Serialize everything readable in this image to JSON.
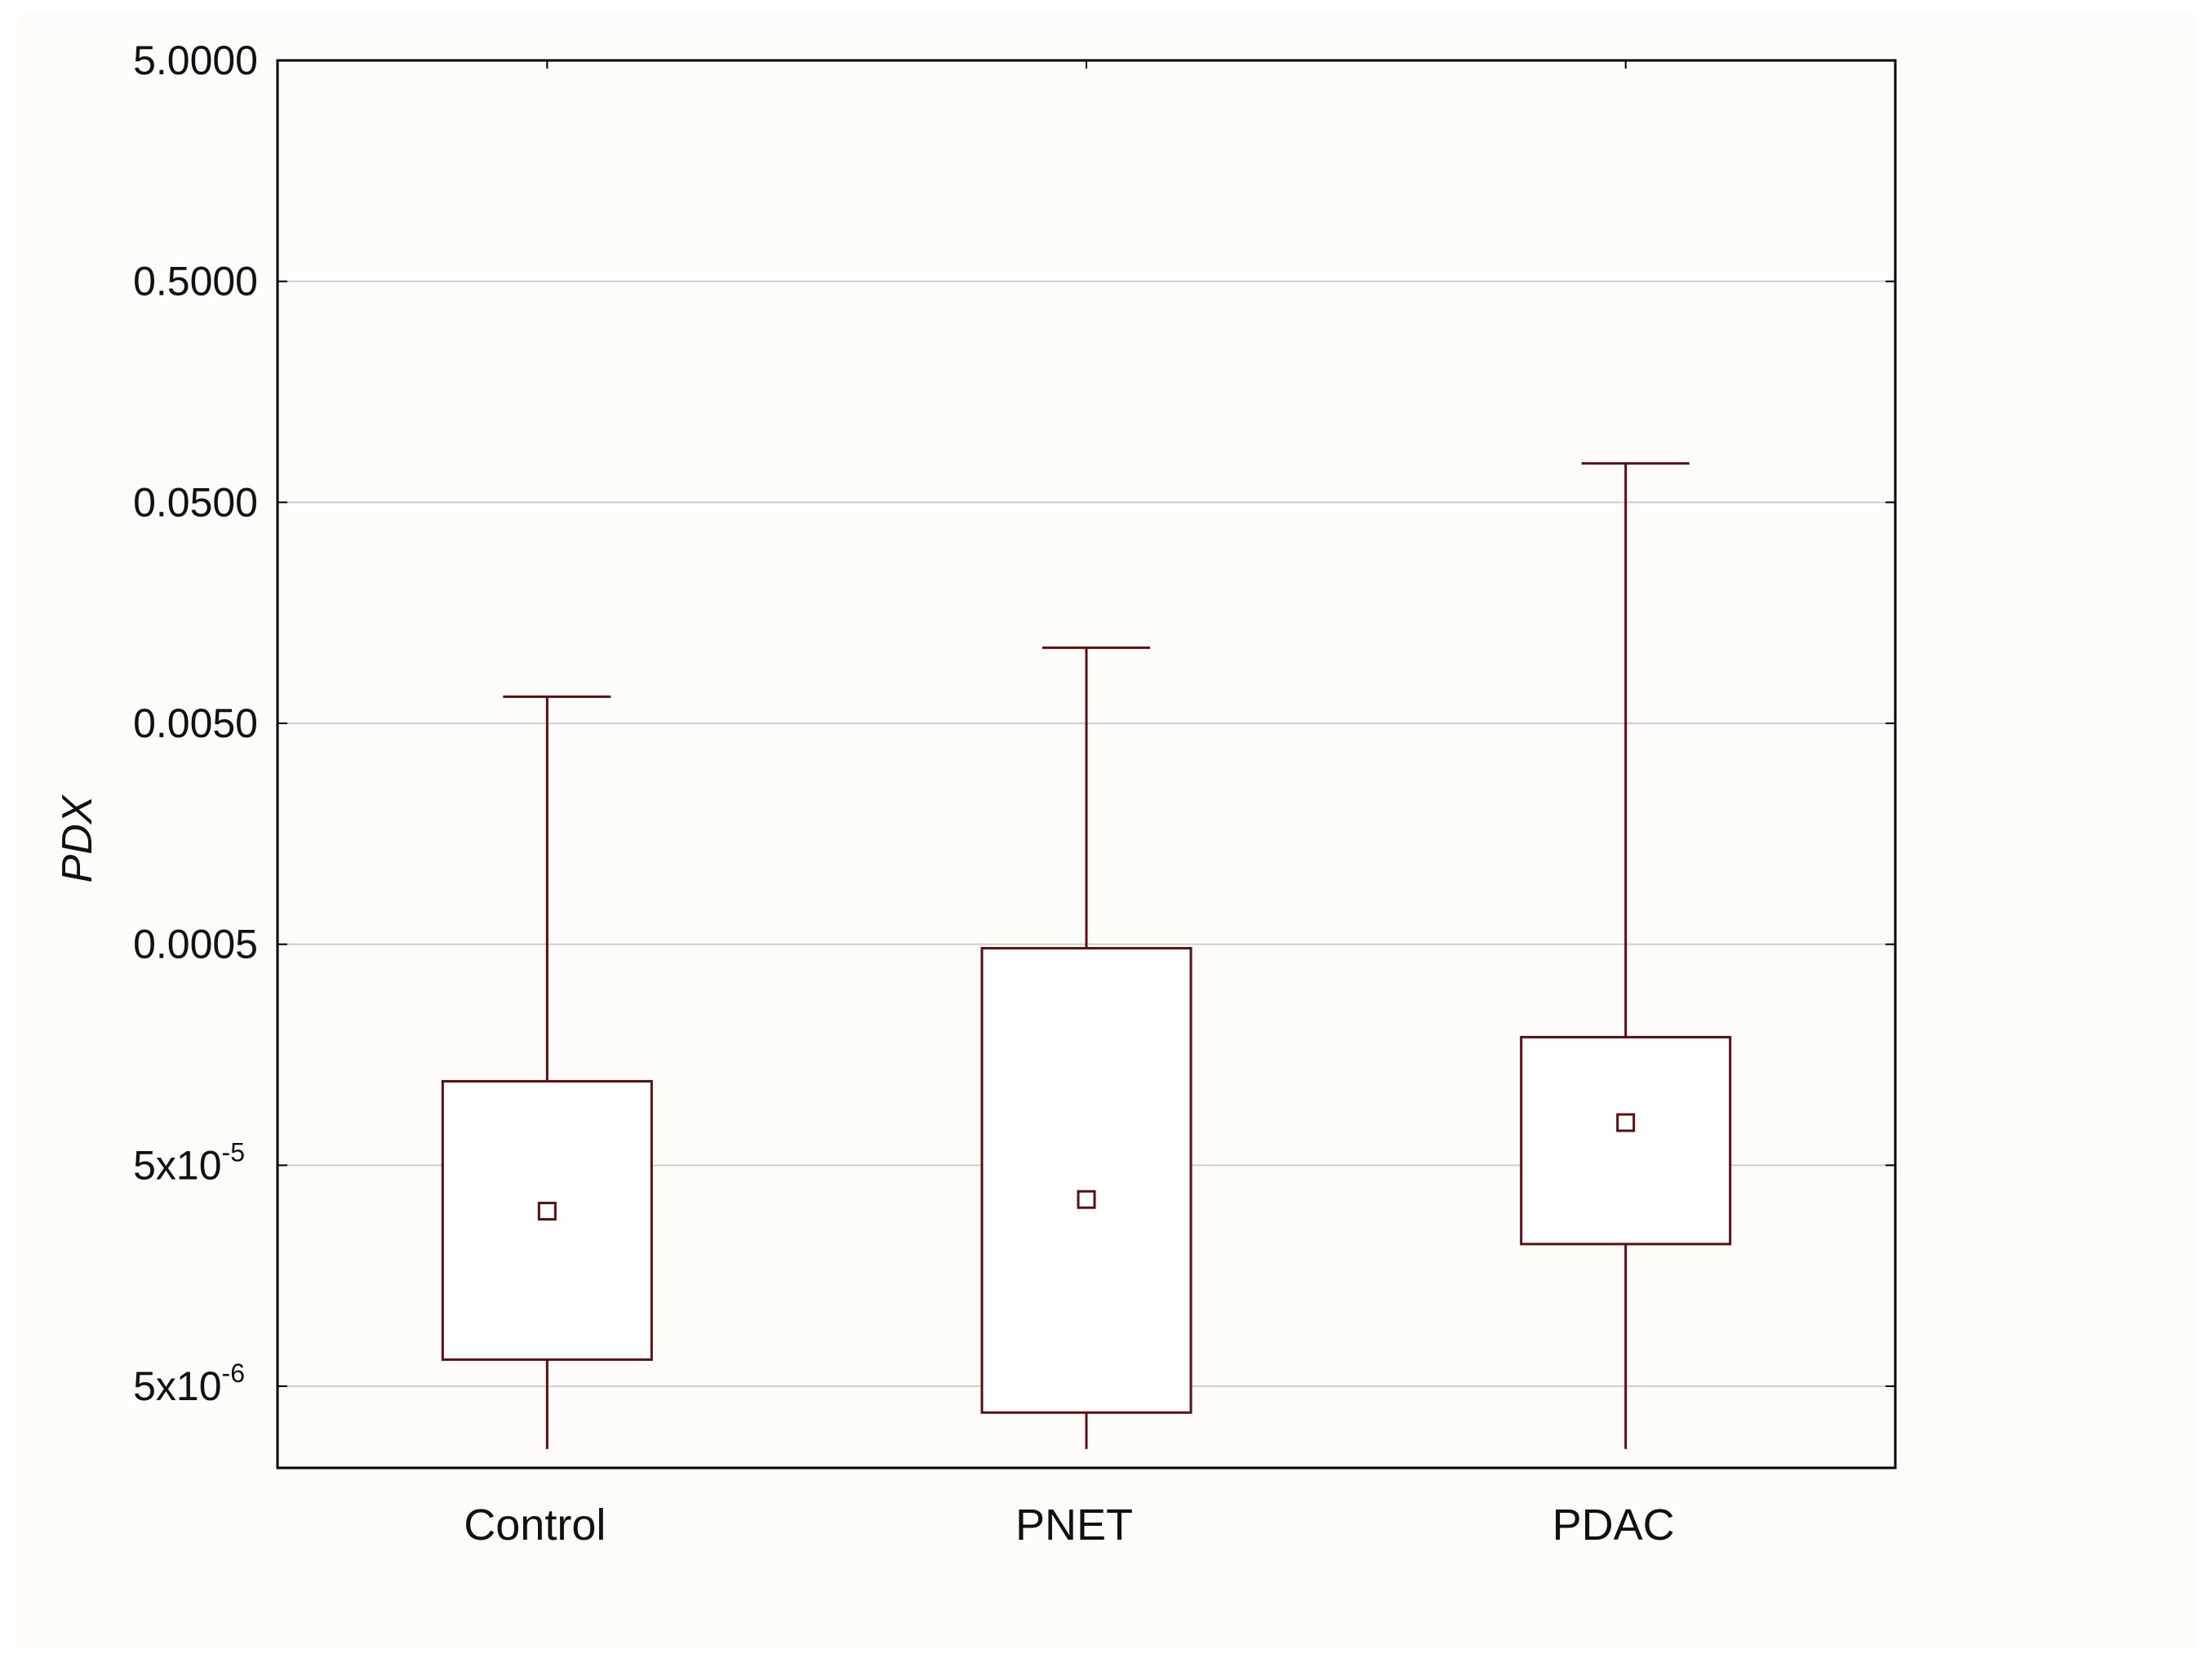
{
  "chart_data": {
    "type": "boxplot",
    "title": "",
    "xlabel": "",
    "ylabel": "PDX",
    "yscale": "log",
    "ylim": [
      2.6e-06,
      5.0
    ],
    "grid": true,
    "y_ticks": [
      {
        "value": 5.0,
        "label": "5.0000"
      },
      {
        "value": 0.5,
        "label": "0.5000"
      },
      {
        "value": 0.05,
        "label": "0.0500"
      },
      {
        "value": 0.005,
        "label": "0.0050"
      },
      {
        "value": 0.0005,
        "label": "0.0005"
      },
      {
        "value": 5e-05,
        "base": "5x10",
        "exp": "-5"
      },
      {
        "value": 5e-06,
        "base": "5x10",
        "exp": "-6"
      }
    ],
    "categories": [
      "Control",
      "PNET",
      "PDAC"
    ],
    "boxes": [
      {
        "name": "Control",
        "whisker_low": 2.6e-06,
        "q1": 6.6e-06,
        "median": 3.1e-05,
        "q3": 0.00012,
        "whisker_high": 0.0066
      },
      {
        "name": "PNET",
        "whisker_low": 2.6e-06,
        "q1": 3.8e-06,
        "median": 3.5e-05,
        "q3": 0.00048,
        "whisker_high": 0.011
      },
      {
        "name": "PDAC",
        "whisker_low": 2.6e-06,
        "q1": 2.2e-05,
        "median": 7.8e-05,
        "q3": 0.00019,
        "whisker_high": 0.075
      }
    ],
    "colors": {
      "box": "#5a1010",
      "grid": "#cfcfcf",
      "axis": "#000000"
    }
  }
}
